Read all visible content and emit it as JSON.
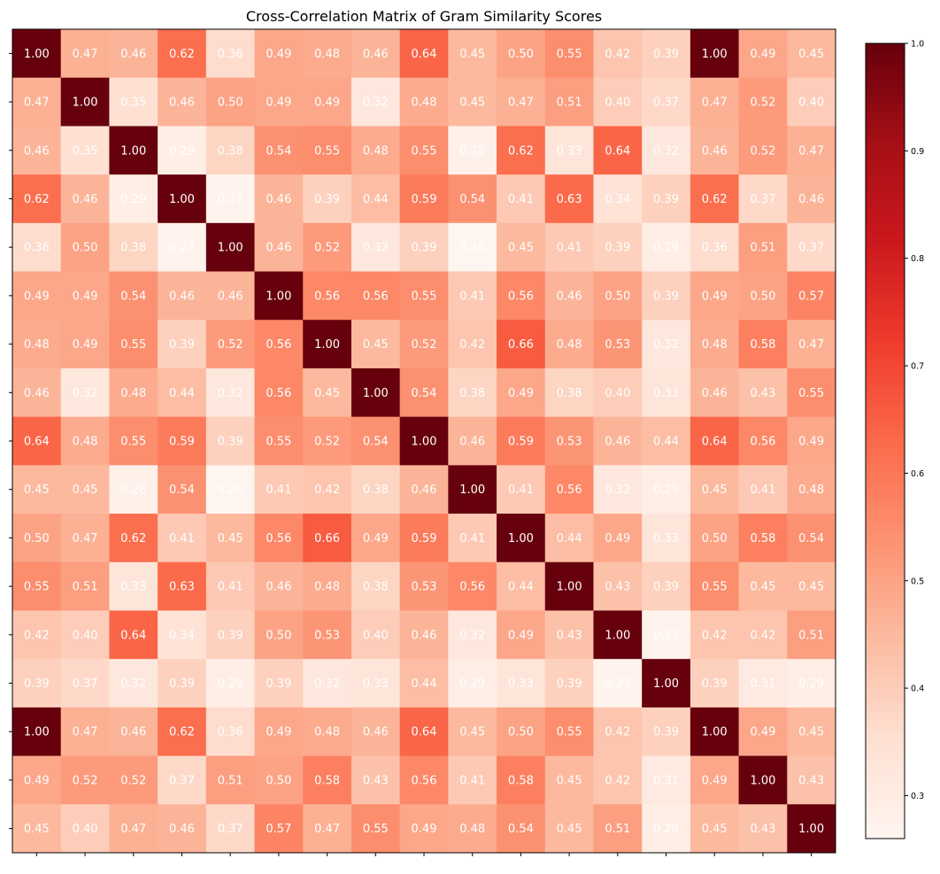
{
  "chart_data": {
    "type": "heatmap",
    "title": "Cross-Correlation Matrix of Gram Similarity Scores",
    "xlabel": "",
    "ylabel": "",
    "colormap": "Reds",
    "color_range": [
      0.26,
      1.0
    ],
    "colorbar_ticks": [
      "0.3",
      "0.4",
      "0.5",
      "0.6",
      "0.7",
      "0.8",
      "0.9",
      "1.0"
    ],
    "colorbar_tick_values": [
      0.3,
      0.4,
      0.5,
      0.6,
      0.7,
      0.8,
      0.9,
      1.0
    ],
    "matrix": [
      [
        1.0,
        0.47,
        0.46,
        0.62,
        0.36,
        0.49,
        0.48,
        0.46,
        0.64,
        0.45,
        0.5,
        0.55,
        0.42,
        0.39,
        1.0,
        0.49,
        0.45
      ],
      [
        0.47,
        1.0,
        0.35,
        0.46,
        0.5,
        0.49,
        0.49,
        0.32,
        0.48,
        0.45,
        0.47,
        0.51,
        0.4,
        0.37,
        0.47,
        0.52,
        0.4
      ],
      [
        0.46,
        0.35,
        1.0,
        0.29,
        0.38,
        0.54,
        0.55,
        0.48,
        0.55,
        0.28,
        0.62,
        0.33,
        0.64,
        0.32,
        0.46,
        0.52,
        0.47
      ],
      [
        0.62,
        0.46,
        0.29,
        1.0,
        0.27,
        0.46,
        0.39,
        0.44,
        0.59,
        0.54,
        0.41,
        0.63,
        0.34,
        0.39,
        0.62,
        0.37,
        0.46
      ],
      [
        0.36,
        0.5,
        0.38,
        0.27,
        1.0,
        0.46,
        0.52,
        0.32,
        0.39,
        0.26,
        0.45,
        0.41,
        0.39,
        0.29,
        0.36,
        0.51,
        0.37
      ],
      [
        0.49,
        0.49,
        0.54,
        0.46,
        0.46,
        1.0,
        0.56,
        0.56,
        0.55,
        0.41,
        0.56,
        0.46,
        0.5,
        0.39,
        0.49,
        0.5,
        0.57
      ],
      [
        0.48,
        0.49,
        0.55,
        0.39,
        0.52,
        0.56,
        1.0,
        0.45,
        0.52,
        0.42,
        0.66,
        0.48,
        0.53,
        0.32,
        0.48,
        0.58,
        0.47
      ],
      [
        0.46,
        0.32,
        0.48,
        0.44,
        0.32,
        0.56,
        0.45,
        1.0,
        0.54,
        0.38,
        0.49,
        0.38,
        0.4,
        0.33,
        0.46,
        0.43,
        0.55
      ],
      [
        0.64,
        0.48,
        0.55,
        0.59,
        0.39,
        0.55,
        0.52,
        0.54,
        1.0,
        0.46,
        0.59,
        0.53,
        0.46,
        0.44,
        0.64,
        0.56,
        0.49
      ],
      [
        0.45,
        0.45,
        0.28,
        0.54,
        0.26,
        0.41,
        0.42,
        0.38,
        0.46,
        1.0,
        0.41,
        0.56,
        0.32,
        0.29,
        0.45,
        0.41,
        0.48
      ],
      [
        0.5,
        0.47,
        0.62,
        0.41,
        0.45,
        0.56,
        0.66,
        0.49,
        0.59,
        0.41,
        1.0,
        0.44,
        0.49,
        0.33,
        0.5,
        0.58,
        0.54
      ],
      [
        0.55,
        0.51,
        0.33,
        0.63,
        0.41,
        0.46,
        0.48,
        0.38,
        0.53,
        0.56,
        0.44,
        1.0,
        0.43,
        0.39,
        0.55,
        0.45,
        0.45
      ],
      [
        0.42,
        0.4,
        0.64,
        0.34,
        0.39,
        0.5,
        0.53,
        0.4,
        0.46,
        0.32,
        0.49,
        0.43,
        1.0,
        0.27,
        0.42,
        0.42,
        0.51
      ],
      [
        0.39,
        0.37,
        0.32,
        0.39,
        0.29,
        0.39,
        0.32,
        0.33,
        0.44,
        0.29,
        0.33,
        0.39,
        0.27,
        1.0,
        0.39,
        0.31,
        0.29
      ],
      [
        1.0,
        0.47,
        0.46,
        0.62,
        0.36,
        0.49,
        0.48,
        0.46,
        0.64,
        0.45,
        0.5,
        0.55,
        0.42,
        0.39,
        1.0,
        0.49,
        0.45
      ],
      [
        0.49,
        0.52,
        0.52,
        0.37,
        0.51,
        0.5,
        0.58,
        0.43,
        0.56,
        0.41,
        0.58,
        0.45,
        0.42,
        0.31,
        0.49,
        1.0,
        0.43
      ],
      [
        0.45,
        0.4,
        0.47,
        0.46,
        0.37,
        0.57,
        0.47,
        0.55,
        0.49,
        0.48,
        0.54,
        0.45,
        0.51,
        0.29,
        0.45,
        0.43,
        1.0
      ]
    ]
  }
}
